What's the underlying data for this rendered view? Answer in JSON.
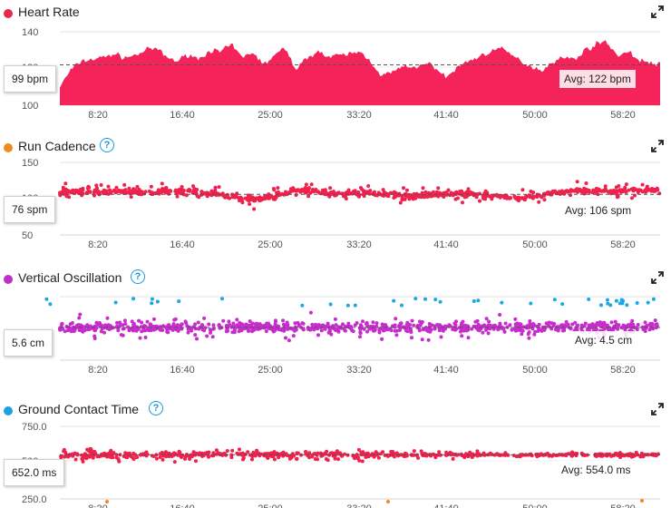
{
  "x_ticks": [
    "8:20",
    "16:40",
    "25:00",
    "33:20",
    "41:40",
    "50:00",
    "58:20"
  ],
  "panels": [
    {
      "title": "Heart Rate",
      "dot_color": "#e8294f",
      "has_help": false,
      "y_top": "140",
      "y_mid": "120",
      "y_bottom": "100",
      "current_value": "99 bpm",
      "average": "Avg: 122 bpm",
      "icon": "expand-icon"
    },
    {
      "title": "Run Cadence",
      "dot_color": "#f08a1e",
      "has_help": true,
      "y_top": "150",
      "y_mid": "100",
      "y_bottom": "50",
      "current_value": "76 spm",
      "average": "Avg: 106 spm",
      "icon": "expand-icon"
    },
    {
      "title": "Vertical Oscillation",
      "dot_color": "#c02ec8",
      "has_help": true,
      "y_top": "",
      "y_mid": "",
      "y_bottom": "",
      "current_value": "5.6 cm",
      "average": "Avg: 4.5 cm",
      "icon": "expand-icon"
    },
    {
      "title": "Ground Contact Time",
      "dot_color": "#1aa3e0",
      "has_help": true,
      "y_top": "750.0",
      "y_mid": "500",
      "y_bottom": "250.0",
      "current_value": "652.0 ms",
      "average": "Avg: 554.0 ms",
      "icon": "expand-icon"
    }
  ],
  "chart_data": [
    {
      "type": "area",
      "title": "Heart Rate",
      "x": [
        "8:20",
        "16:40",
        "25:00",
        "33:20",
        "41:40",
        "50:00",
        "58:20"
      ],
      "ylim": [
        100,
        140
      ],
      "average": 122,
      "color": "#f4245a",
      "profile": [
        110,
        119,
        124,
        125,
        126,
        128,
        126,
        127,
        130,
        131,
        126,
        124,
        128,
        125,
        130,
        129,
        133,
        126,
        129,
        122,
        127,
        131,
        120,
        125,
        130,
        126,
        127,
        128,
        129,
        124,
        116,
        118,
        121,
        120,
        123,
        121,
        115,
        120,
        124,
        126,
        129,
        131,
        128,
        124,
        121,
        119,
        124,
        126,
        125,
        130,
        133,
        135,
        127,
        129,
        125,
        123,
        122
      ]
    },
    {
      "type": "scatter",
      "title": "Run Cadence",
      "x": [
        "8:20",
        "16:40",
        "25:00",
        "33:20",
        "41:40",
        "50:00",
        "58:20"
      ],
      "ylim": [
        50,
        150
      ],
      "average": 106,
      "color": "#f0214d",
      "profile": [
        108,
        110,
        109,
        110,
        110,
        108,
        109,
        110,
        111,
        108,
        106,
        104,
        100,
        99,
        104,
        110,
        112,
        108,
        106,
        107,
        108,
        106,
        105,
        104,
        105,
        106,
        107,
        106,
        105,
        102,
        100,
        104,
        108,
        110,
        111,
        110,
        110,
        111,
        112,
        111
      ]
    },
    {
      "type": "scatter",
      "title": "Vertical Oscillation",
      "x": [
        "8:20",
        "16:40",
        "25:00",
        "33:20",
        "41:40",
        "50:00",
        "58:20"
      ],
      "average": 4.5,
      "colors": {
        "main": "#c72ccc",
        "high": "#1ba8e3"
      }
    },
    {
      "type": "scatter",
      "title": "Ground Contact Time",
      "x": [
        "8:20",
        "16:40",
        "25:00",
        "33:20",
        "41:40",
        "50:00",
        "58:20"
      ],
      "ylim": [
        250,
        750
      ],
      "average": 554,
      "colors": {
        "main": "#f0214d",
        "low": "#f08a1e"
      }
    }
  ]
}
